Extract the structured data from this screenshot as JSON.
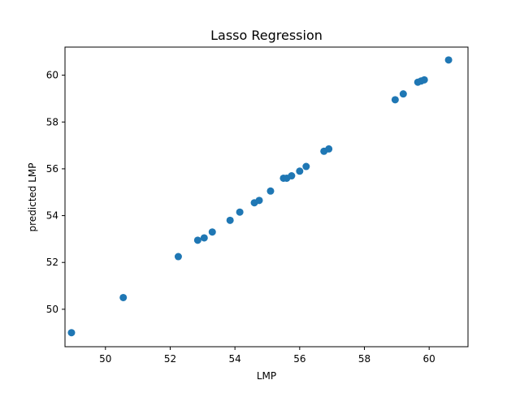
{
  "chart_data": {
    "type": "scatter",
    "title": "Lasso Regression",
    "xlabel": "LMP",
    "ylabel": "predicted LMP",
    "xlim": [
      48.75,
      61.2
    ],
    "ylim": [
      48.4,
      61.2
    ],
    "xticks": [
      50,
      52,
      54,
      56,
      58,
      60
    ],
    "yticks": [
      50,
      52,
      54,
      56,
      58,
      60
    ],
    "grid": false,
    "point_color": "#1f77b4",
    "points": [
      {
        "x": 48.95,
        "y": 49.0
      },
      {
        "x": 50.55,
        "y": 50.5
      },
      {
        "x": 52.25,
        "y": 52.25
      },
      {
        "x": 52.85,
        "y": 52.95
      },
      {
        "x": 53.05,
        "y": 53.05
      },
      {
        "x": 53.3,
        "y": 53.3
      },
      {
        "x": 53.85,
        "y": 53.8
      },
      {
        "x": 54.15,
        "y": 54.15
      },
      {
        "x": 54.6,
        "y": 54.55
      },
      {
        "x": 54.75,
        "y": 54.65
      },
      {
        "x": 55.1,
        "y": 55.05
      },
      {
        "x": 55.5,
        "y": 55.6
      },
      {
        "x": 55.6,
        "y": 55.6
      },
      {
        "x": 55.75,
        "y": 55.7
      },
      {
        "x": 56.0,
        "y": 55.9
      },
      {
        "x": 56.2,
        "y": 56.1
      },
      {
        "x": 56.75,
        "y": 56.75
      },
      {
        "x": 56.9,
        "y": 56.85
      },
      {
        "x": 58.95,
        "y": 58.95
      },
      {
        "x": 59.2,
        "y": 59.2
      },
      {
        "x": 59.65,
        "y": 59.7
      },
      {
        "x": 59.75,
        "y": 59.75
      },
      {
        "x": 59.85,
        "y": 59.8
      },
      {
        "x": 60.6,
        "y": 60.65
      }
    ]
  }
}
